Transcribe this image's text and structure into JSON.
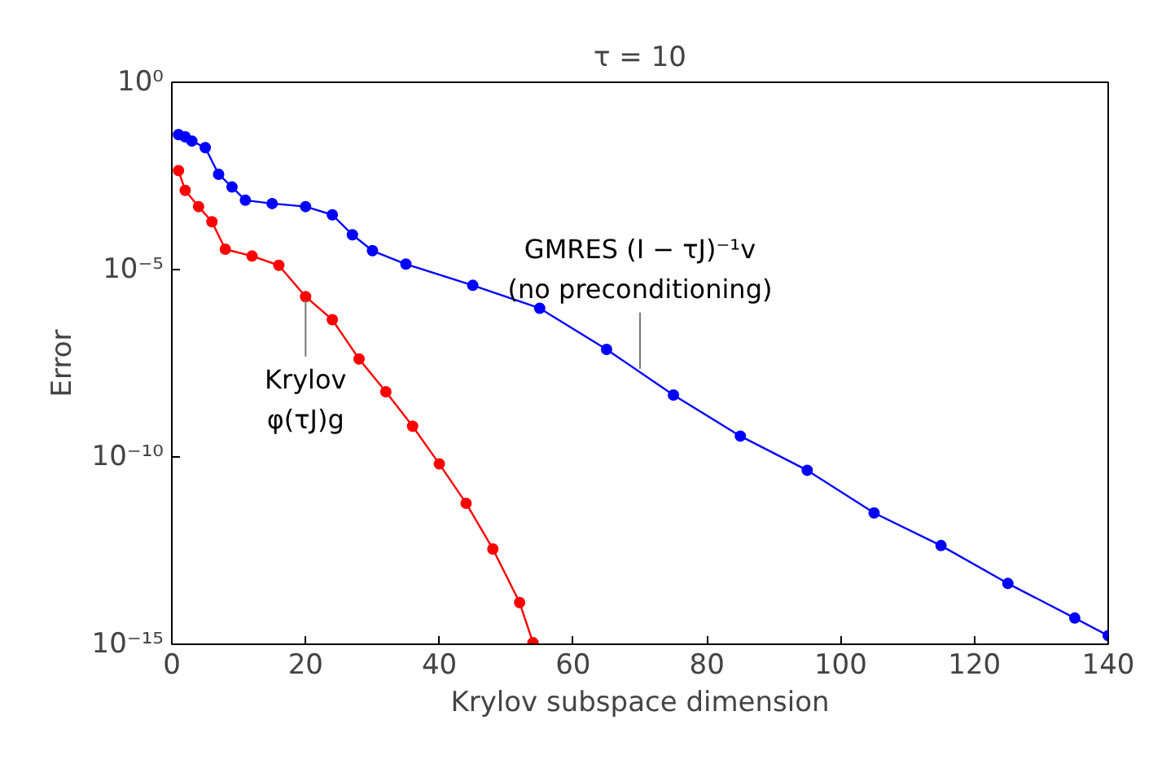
{
  "chart_data": {
    "type": "line",
    "title": "τ = 10",
    "xlabel": "Krylov subspace dimension",
    "ylabel": "Error",
    "log": "y",
    "marker": "circle",
    "line_style": "solid",
    "grid": false,
    "xlim": [
      0,
      140
    ],
    "xticks": [
      0,
      20,
      40,
      60,
      80,
      100,
      120,
      140
    ],
    "ylim": [
      1e-15,
      1
    ],
    "yticks": [
      {
        "value": 1e-15,
        "label": "10⁻¹⁵"
      },
      {
        "value": 1e-10,
        "label": "10⁻¹⁰"
      },
      {
        "value": 1e-05,
        "label": "10⁻⁵"
      },
      {
        "value": 1,
        "label": "10⁰"
      }
    ],
    "series": [
      {
        "color": "#0000ff",
        "x": [
          1,
          2,
          3,
          5,
          7,
          9,
          11,
          15,
          20,
          24,
          27,
          30,
          35,
          45,
          55,
          65,
          75,
          85,
          95,
          105,
          115,
          125,
          135,
          140
        ],
        "values": [
          0.04,
          0.035,
          0.027,
          0.018,
          0.0035,
          0.0016,
          0.00071,
          0.00058,
          0.00048,
          0.00029,
          8.5e-05,
          3.2e-05,
          1.4e-05,
          3.8e-06,
          9.3e-07,
          7.4e-08,
          4.5e-09,
          3.6e-10,
          4.4e-11,
          3.2e-12,
          4.3e-13,
          4.2e-14,
          5e-15,
          1.7e-15
        ]
      },
      {
        "color": "#ff0000",
        "x": [
          1,
          2,
          4,
          6,
          8,
          12,
          16,
          20,
          24,
          28,
          32,
          36,
          40,
          44,
          48,
          52,
          54
        ],
        "values": [
          0.0044,
          0.0013,
          0.00048,
          0.00019,
          3.5e-05,
          2.3e-05,
          1.3e-05,
          1.9e-06,
          4.6e-07,
          4.1e-08,
          5.5e-09,
          6.6e-10,
          6.5e-11,
          5.8e-12,
          3.5e-13,
          1.3e-14,
          1.1e-15
        ]
      }
    ],
    "annotations": [
      {
        "text": "Krylov\nφ(τJ)g",
        "x": 20,
        "y": 1.9e-06
      },
      {
        "text": "GMRES (I − τJ)⁻¹v\n(no preconditioning)",
        "x": 70,
        "y": 1.8e-08
      }
    ]
  }
}
